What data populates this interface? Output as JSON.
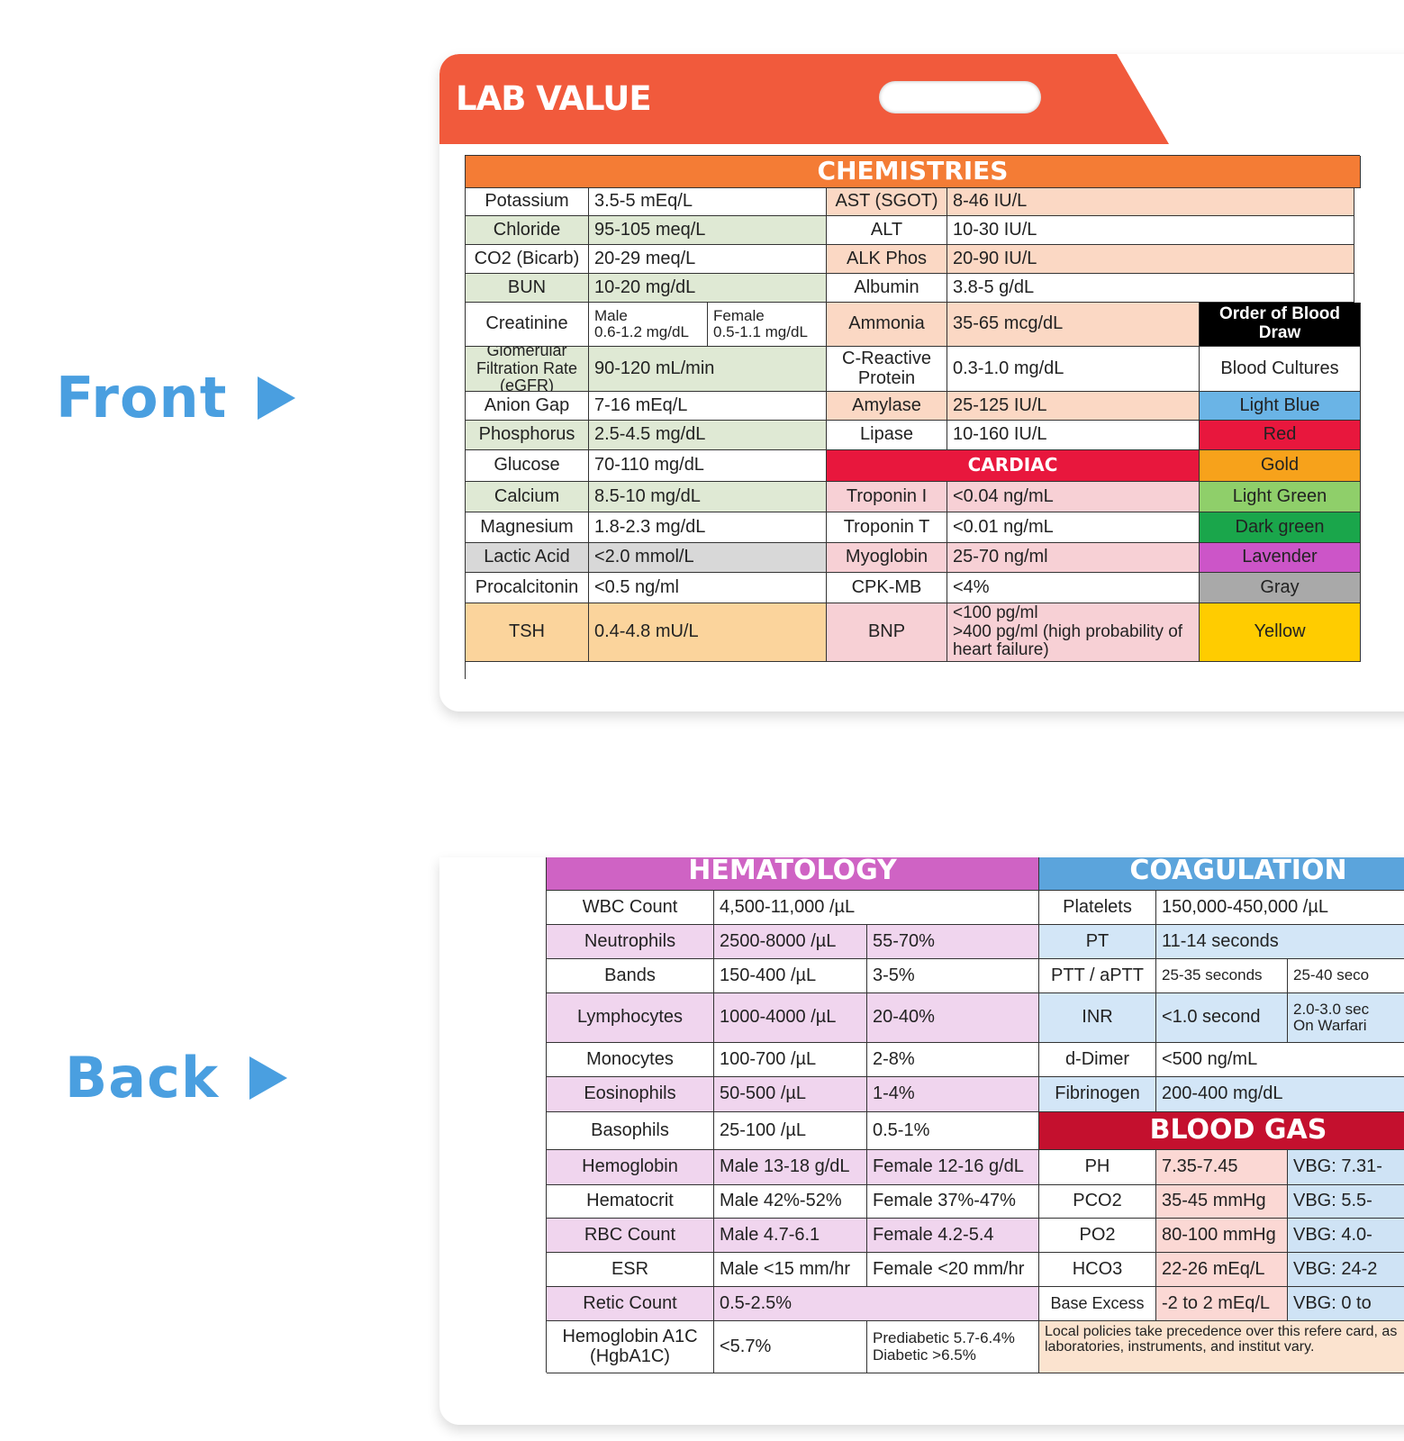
{
  "labels": {
    "front": "Front",
    "back": "Back"
  },
  "front": {
    "title": "LAB VALUE",
    "chemistries_header": "CHEMISTRIES",
    "cardiac_header": "CARDIAC",
    "blood_draw_header": "Order of Blood Draw",
    "left": [
      {
        "name": "Potassium",
        "value": "3.5-5 mEq/L"
      },
      {
        "name": "Chloride",
        "value": "95-105 meq/L"
      },
      {
        "name": "CO2 (Bicarb)",
        "value": "20-29 meq/L"
      },
      {
        "name": "BUN",
        "value": "10-20 mg/dL"
      },
      {
        "name": "Creatinine",
        "male": "Male\n0.6-1.2 mg/dL",
        "female": "Female\n0.5-1.1 mg/dL"
      },
      {
        "name": "Glomerular Filtration Rate (eGFR)",
        "value": "90-120 mL/min"
      },
      {
        "name": "Anion Gap",
        "value": "7-16 mEq/L"
      },
      {
        "name": "Phosphorus",
        "value": "2.5-4.5 mg/dL"
      },
      {
        "name": "Glucose",
        "value": "70-110 mg/dL"
      },
      {
        "name": "Calcium",
        "value": "8.5-10 mg/dL"
      },
      {
        "name": "Magnesium",
        "value": "1.8-2.3 mg/dL"
      },
      {
        "name": "Lactic Acid",
        "value": "<2.0 mmol/L"
      },
      {
        "name": "Procalcitonin",
        "value": "<0.5 ng/ml"
      },
      {
        "name": "TSH",
        "value": "0.4-4.8 mU/L"
      }
    ],
    "mid": [
      {
        "name": "AST (SGOT)",
        "value": "8-46 IU/L"
      },
      {
        "name": "ALT",
        "value": "10-30 IU/L"
      },
      {
        "name": "ALK Phos",
        "value": "20-90 IU/L"
      },
      {
        "name": "Albumin",
        "value": "3.8-5 g/dL"
      },
      {
        "name": "Ammonia",
        "value": "35-65 mcg/dL"
      },
      {
        "name": "C-Reactive Protein",
        "value": "0.3-1.0 mg/dL"
      },
      {
        "name": "Amylase",
        "value": "25-125 IU/L"
      },
      {
        "name": "Lipase",
        "value": "10-160 IU/L"
      }
    ],
    "cardiac": [
      {
        "name": "Troponin I",
        "value": "<0.04 ng/mL"
      },
      {
        "name": "Troponin T",
        "value": "<0.01  ng/mL"
      },
      {
        "name": "Myoglobin",
        "value": "25-70 ng/ml"
      },
      {
        "name": "CPK-MB",
        "value": "<4%"
      },
      {
        "name": "BNP",
        "value": "<100 pg/ml\n>400 pg/ml (high probability of heart failure)"
      }
    ],
    "blood_draw": [
      {
        "label": "Blood Cultures",
        "color": "#ffffff"
      },
      {
        "label": "Light Blue",
        "color": "#6ab4e6"
      },
      {
        "label": "Red",
        "color": "#e8173d"
      },
      {
        "label": "Gold",
        "color": "#f7a21b"
      },
      {
        "label": "Light Green",
        "color": "#8fcf6a"
      },
      {
        "label": "Dark green",
        "color": "#1aa64b"
      },
      {
        "label": "Lavender",
        "color": "#cc55c8"
      },
      {
        "label": "Gray",
        "color": "#a9a9a9"
      },
      {
        "label": "Yellow",
        "color": "#ffcc00"
      }
    ]
  },
  "back": {
    "hematology_header": "HEMATOLOGY",
    "coagulation_header": "COAGULATION",
    "blood_gas_header": "BLOOD GAS",
    "hematology": [
      {
        "name": "WBC Count",
        "v1": "4,500-11,000 /µL",
        "v2": ""
      },
      {
        "name": "Neutrophils",
        "v1": "2500-8000 /µL",
        "v2": "55-70%"
      },
      {
        "name": "Bands",
        "v1": "150-400 /µL",
        "v2": "3-5%"
      },
      {
        "name": "Lymphocytes",
        "v1": "1000-4000 /µL",
        "v2": "20-40%"
      },
      {
        "name": "Monocytes",
        "v1": "100-700 /µL",
        "v2": "2-8%"
      },
      {
        "name": "Eosinophils",
        "v1": "50-500 /µL",
        "v2": "1-4%"
      },
      {
        "name": "Basophils",
        "v1": "25-100 /µL",
        "v2": "0.5-1%"
      },
      {
        "name": "Hemoglobin",
        "v1": "Male 13-18 g/dL",
        "v2": "Female 12-16 g/dL"
      },
      {
        "name": "Hematocrit",
        "v1": "Male 42%-52%",
        "v2": "Female 37%-47%"
      },
      {
        "name": "RBC Count",
        "v1": "Male 4.7-6.1",
        "v2": "Female 4.2-5.4"
      },
      {
        "name": "ESR",
        "v1": "Male <15 mm/hr",
        "v2": "Female <20 mm/hr"
      },
      {
        "name": "Retic Count",
        "v1": "0.5-2.5%",
        "v2": ""
      },
      {
        "name": "Hemoglobin A1C (HgbA1C)",
        "v1": "<5.7%",
        "v2": "Prediabetic 5.7-6.4%\nDiabetic >6.5%"
      }
    ],
    "coagulation": [
      {
        "name": "Platelets",
        "v1": "150,000-450,000 /µL",
        "v2": ""
      },
      {
        "name": "PT",
        "v1": "11-14 seconds",
        "v2": ""
      },
      {
        "name": "PTT / aPTT",
        "v1": "25-35 seconds",
        "v2": "25-40 seco"
      },
      {
        "name": "INR",
        "v1": "<1.0 second",
        "v2": "2.0-3.0 sec\nOn Warfari"
      },
      {
        "name": "d-Dimer",
        "v1": "<500 ng/mL",
        "v2": ""
      },
      {
        "name": "Fibrinogen",
        "v1": "200-400 mg/dL",
        "v2": ""
      }
    ],
    "blood_gas": [
      {
        "name": "PH",
        "v1": "7.35-7.45",
        "v2": "VBG: 7.31-"
      },
      {
        "name": "PCO2",
        "v1": "35-45 mmHg",
        "v2": "VBG: 5.5-"
      },
      {
        "name": "PO2",
        "v1": "80-100 mmHg",
        "v2": "VBG: 4.0-"
      },
      {
        "name": "HCO3",
        "v1": "22-26 mEq/L",
        "v2": "VBG: 24-2"
      },
      {
        "name": "Base Excess",
        "v1": "-2 to 2 mEq/L",
        "v2": "VBG: 0 to"
      }
    ],
    "note": "Local policies take precedence over this refere card, as laboratories, instruments, and institut vary."
  }
}
